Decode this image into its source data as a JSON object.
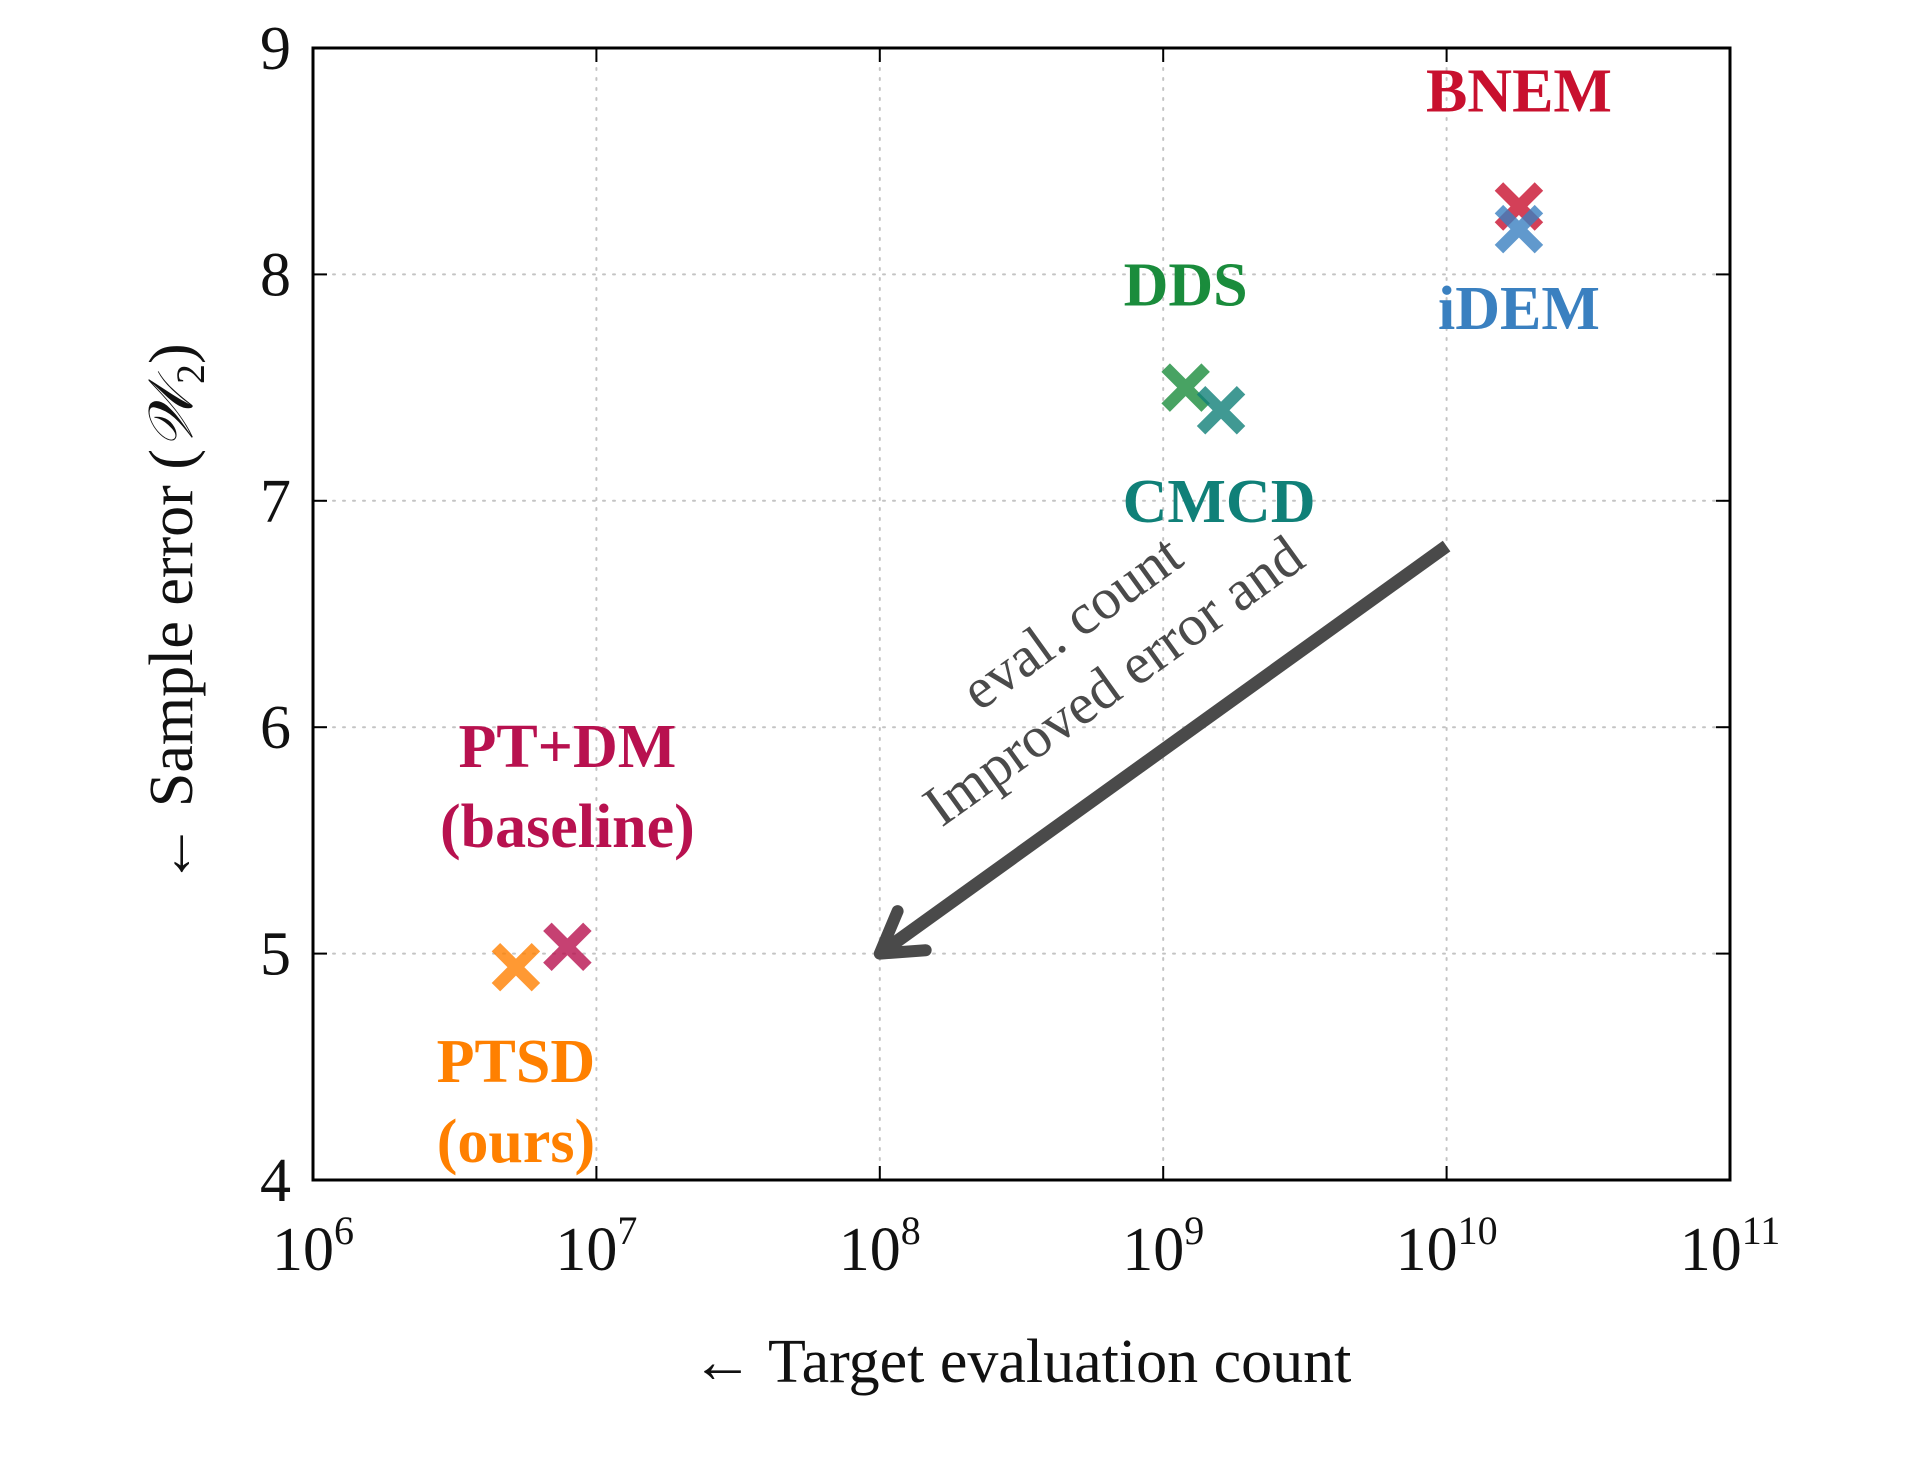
{
  "chart_data": {
    "type": "scatter",
    "title": "",
    "xlabel": "← Target evaluation count",
    "ylabel": "← Sample error (",
    "ylabel_symbol": "𝒲",
    "ylabel_subscript": "2",
    "ylabel_close": ")",
    "x_scale": "log",
    "xlim": [
      1000000,
      100000000000
    ],
    "ylim": [
      4,
      9
    ],
    "x_ticks": [
      {
        "base": "10",
        "exp": "6",
        "value": 1000000
      },
      {
        "base": "10",
        "exp": "7",
        "value": 10000000
      },
      {
        "base": "10",
        "exp": "8",
        "value": 100000000
      },
      {
        "base": "10",
        "exp": "9",
        "value": 1000000000
      },
      {
        "base": "10",
        "exp": "10",
        "value": 10000000000
      },
      {
        "base": "10",
        "exp": "11",
        "value": 100000000000
      }
    ],
    "y_ticks": [
      "4",
      "5",
      "6",
      "7",
      "8",
      "9"
    ],
    "grid": true,
    "marker": "cross",
    "series": [
      {
        "name": "BNEM",
        "x": 18000000000,
        "y": 8.3,
        "color": "#c8102e"
      },
      {
        "name": "iDEM",
        "x": 18000000000,
        "y": 8.2,
        "color": "#3a80c0"
      },
      {
        "name": "DDS",
        "x": 1200000000,
        "y": 7.5,
        "color": "#1a8c3c"
      },
      {
        "name": "CMCD",
        "x": 1600000000,
        "y": 7.4,
        "color": "#108078"
      },
      {
        "name": "PT+DM (baseline)",
        "x": 7900000,
        "y": 5.03,
        "color": "#b8114f"
      },
      {
        "name": "PTSD (ours)",
        "x": 5200000,
        "y": 4.94,
        "color": "#ff8000"
      }
    ],
    "annotations": [
      {
        "lines": [
          "BNEM"
        ],
        "color": "#c8102e"
      },
      {
        "lines": [
          "iDEM"
        ],
        "color": "#3a80c0"
      },
      {
        "lines": [
          "DDS"
        ],
        "color": "#1a8c3c"
      },
      {
        "lines": [
          "CMCD"
        ],
        "color": "#108078"
      },
      {
        "lines": [
          "PT+DM",
          "(baseline)"
        ],
        "color": "#b8114f"
      },
      {
        "lines": [
          "PTSD",
          "(ours)"
        ],
        "color": "#ff8000"
      }
    ],
    "arrow": {
      "from": {
        "x": 10000000000,
        "y": 6.8
      },
      "to": {
        "x": 100000000,
        "y": 5.0
      },
      "color": "#4a4a4a",
      "text_lines": [
        "Improved error and",
        "eval. count"
      ]
    }
  }
}
